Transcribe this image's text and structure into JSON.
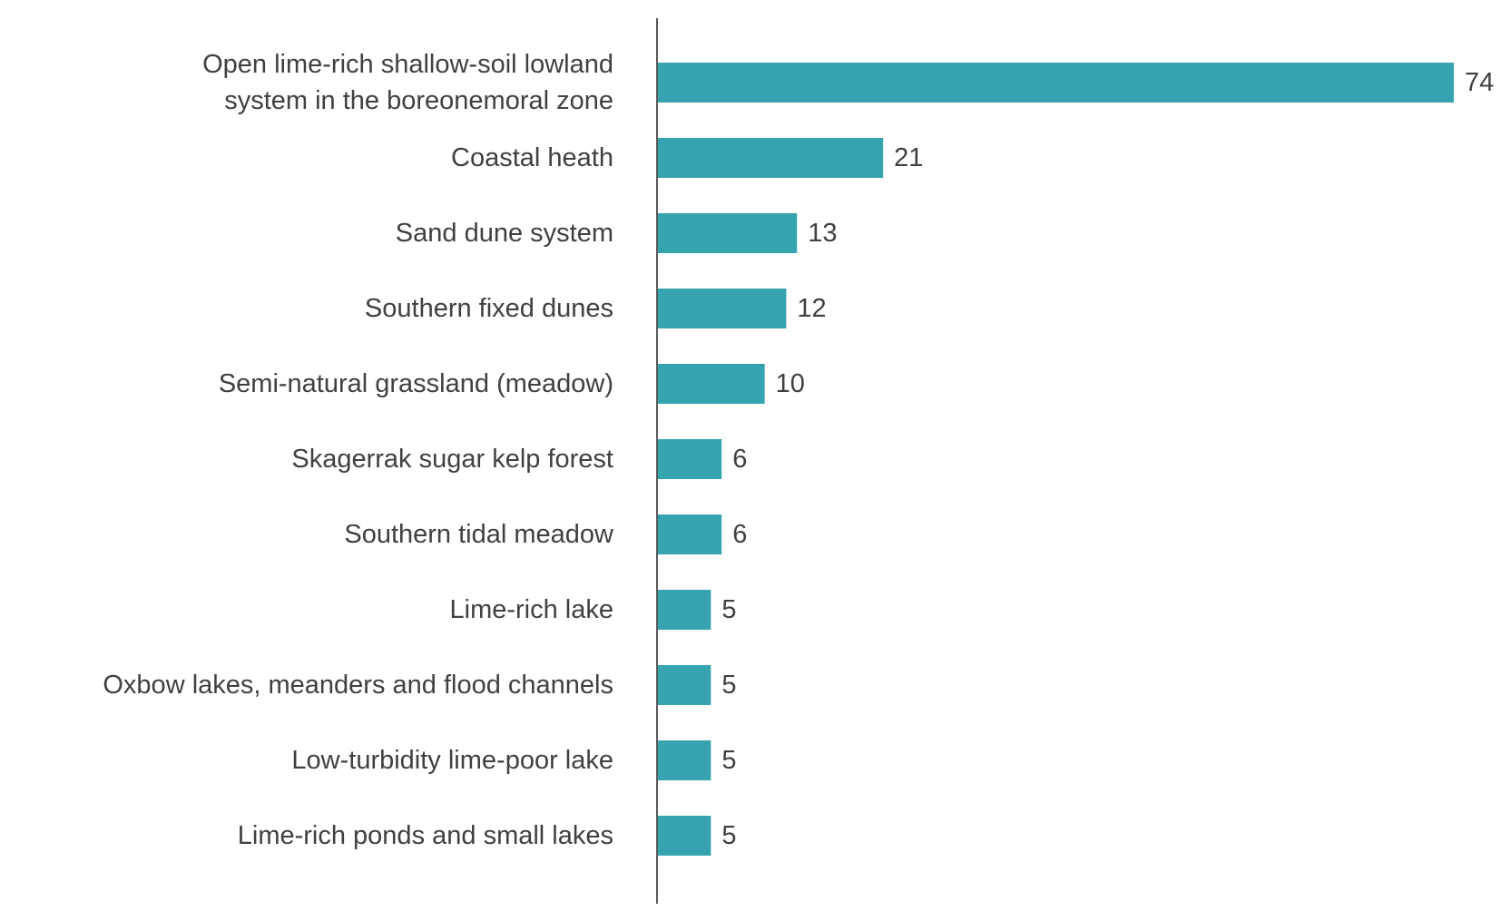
{
  "chart_data": {
    "type": "bar",
    "orientation": "horizontal",
    "categories": [
      [
        "Open lime-rich shallow-soil lowland",
        "system in the boreonemoral zone"
      ],
      [
        "Coastal heath"
      ],
      [
        "Sand dune system"
      ],
      [
        "Southern fixed dunes"
      ],
      [
        "Semi-natural grassland (meadow)"
      ],
      [
        "Skagerrak sugar kelp forest"
      ],
      [
        "Southern tidal meadow"
      ],
      [
        "Lime-rich lake"
      ],
      [
        "Oxbow lakes, meanders and flood channels"
      ],
      [
        "Low-turbidity lime-poor lake"
      ],
      [
        "Lime-rich ponds and small lakes"
      ]
    ],
    "values": [
      74,
      21,
      13,
      12,
      10,
      6,
      6,
      5,
      5,
      5,
      5
    ],
    "value_labels": [
      "74",
      "21",
      "13",
      "12",
      "10",
      "6",
      "6",
      "5",
      "5",
      "5",
      "5"
    ],
    "xlim": [
      0,
      74
    ],
    "grid": false,
    "legend": "none",
    "colors": {
      "bar": "#36a3b1",
      "axis": "#595959",
      "text": "#404040"
    }
  }
}
